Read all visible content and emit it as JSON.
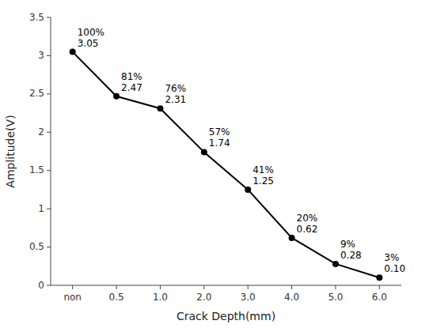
{
  "chart_data": {
    "type": "line",
    "categories": [
      "non",
      "0.5",
      "1.0",
      "2.0",
      "3.0",
      "4.0",
      "5.0",
      "6.0"
    ],
    "values": [
      3.05,
      2.47,
      2.31,
      1.74,
      1.25,
      0.62,
      0.28,
      0.1
    ],
    "value_labels": [
      "3.05",
      "2.47",
      "2.31",
      "1.74",
      "1.25",
      "0.62",
      "0.28",
      "0.10"
    ],
    "annotations": [
      "100%",
      "81%",
      "76%",
      "57%",
      "41%",
      "20%",
      "9%",
      "3%"
    ],
    "data_labels": true,
    "xlabel": "Crack Depth(mm)",
    "ylabel": "Amplitude(V)",
    "ylim": [
      0,
      3.5
    ],
    "yticks": [
      0,
      0.5,
      1,
      1.5,
      2,
      2.5,
      3,
      3.5
    ],
    "color": "#000000",
    "marker": "circle",
    "grid": false
  }
}
